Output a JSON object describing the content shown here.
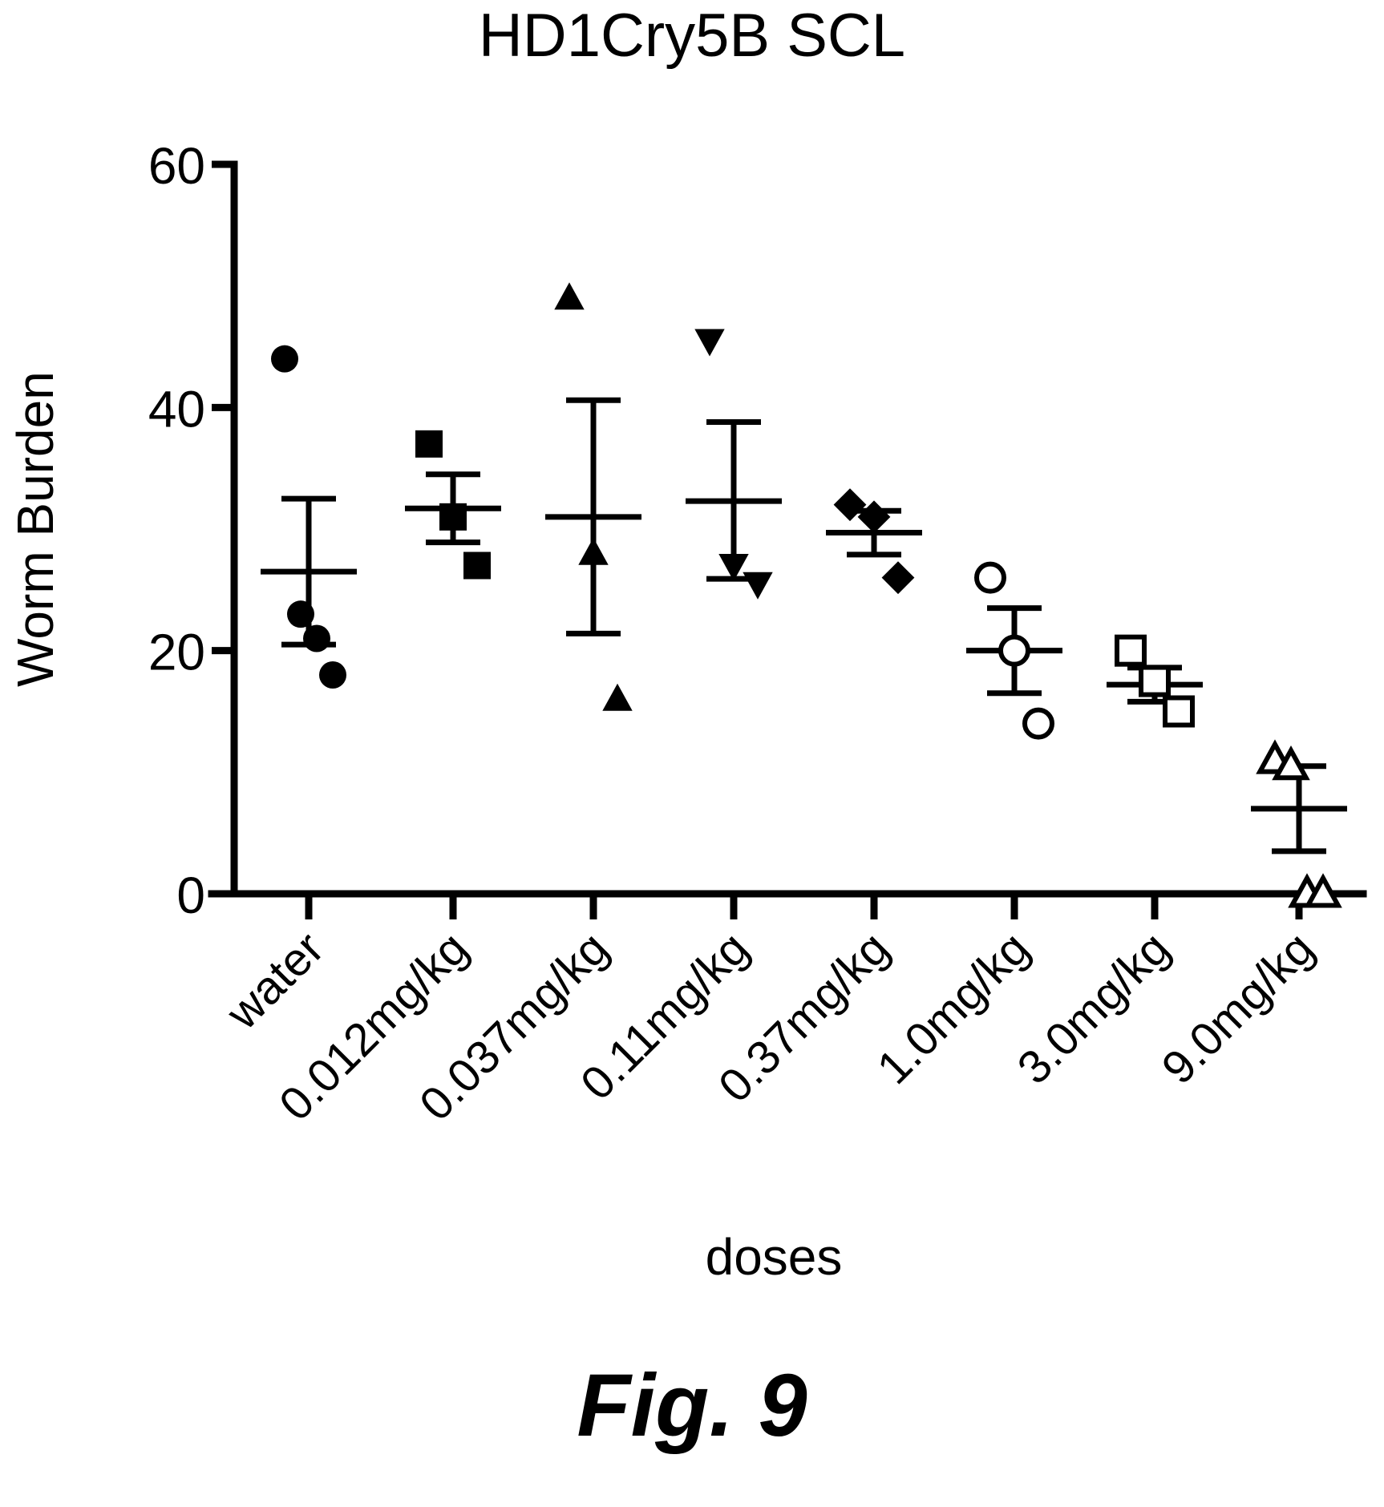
{
  "figure_label": "Fig. 9",
  "chart_data": {
    "type": "scatter",
    "title": "HD1Cry5B SCL",
    "xlabel": "doses",
    "ylabel": "Worm Burden",
    "ylim": [
      0,
      60
    ],
    "yticks": [
      0,
      20,
      40,
      60
    ],
    "grid": false,
    "legend": "none",
    "categories": [
      "water",
      "0.012mg/kg",
      "0.037mg/kg",
      "0.11mg/kg",
      "0.37mg/kg",
      "1.0mg/kg",
      "3.0mg/kg",
      "9.0mg/kg"
    ],
    "groups": [
      {
        "category": "water",
        "marker": "circle-filled",
        "points": [
          44,
          23,
          21,
          18
        ],
        "mean": 26.5,
        "sem_upper": 32.5,
        "sem_lower": 20.5
      },
      {
        "category": "0.012mg/kg",
        "marker": "square-filled",
        "points": [
          37,
          31,
          27
        ],
        "mean": 31.7,
        "sem_upper": 34.5,
        "sem_lower": 28.9
      },
      {
        "category": "0.037mg/kg",
        "marker": "triangle-up-filled",
        "points": [
          49,
          28,
          16
        ],
        "mean": 31,
        "sem_upper": 40.6,
        "sem_lower": 21.4
      },
      {
        "category": "0.11mg/kg",
        "marker": "triangle-down-filled",
        "points": [
          45.5,
          27,
          25.5
        ],
        "mean": 32.3,
        "sem_upper": 38.8,
        "sem_lower": 25.9
      },
      {
        "category": "0.37mg/kg",
        "marker": "diamond-filled",
        "points": [
          32,
          31,
          26
        ],
        "mean": 29.7,
        "sem_upper": 31.5,
        "sem_lower": 27.9
      },
      {
        "category": "1.0mg/kg",
        "marker": "circle-open",
        "points": [
          26,
          20,
          14
        ],
        "mean": 20,
        "sem_upper": 23.5,
        "sem_lower": 16.5
      },
      {
        "category": "3.0mg/kg",
        "marker": "square-open",
        "points": [
          20,
          17.5,
          15
        ],
        "mean": 17.2,
        "sem_upper": 18.6,
        "sem_lower": 15.8
      },
      {
        "category": "9.0mg/kg",
        "marker": "triangle-up-open",
        "points": [
          11,
          10.5,
          0,
          0
        ],
        "mean": 7,
        "sem_upper": 10.5,
        "sem_lower": 3.5
      }
    ]
  }
}
